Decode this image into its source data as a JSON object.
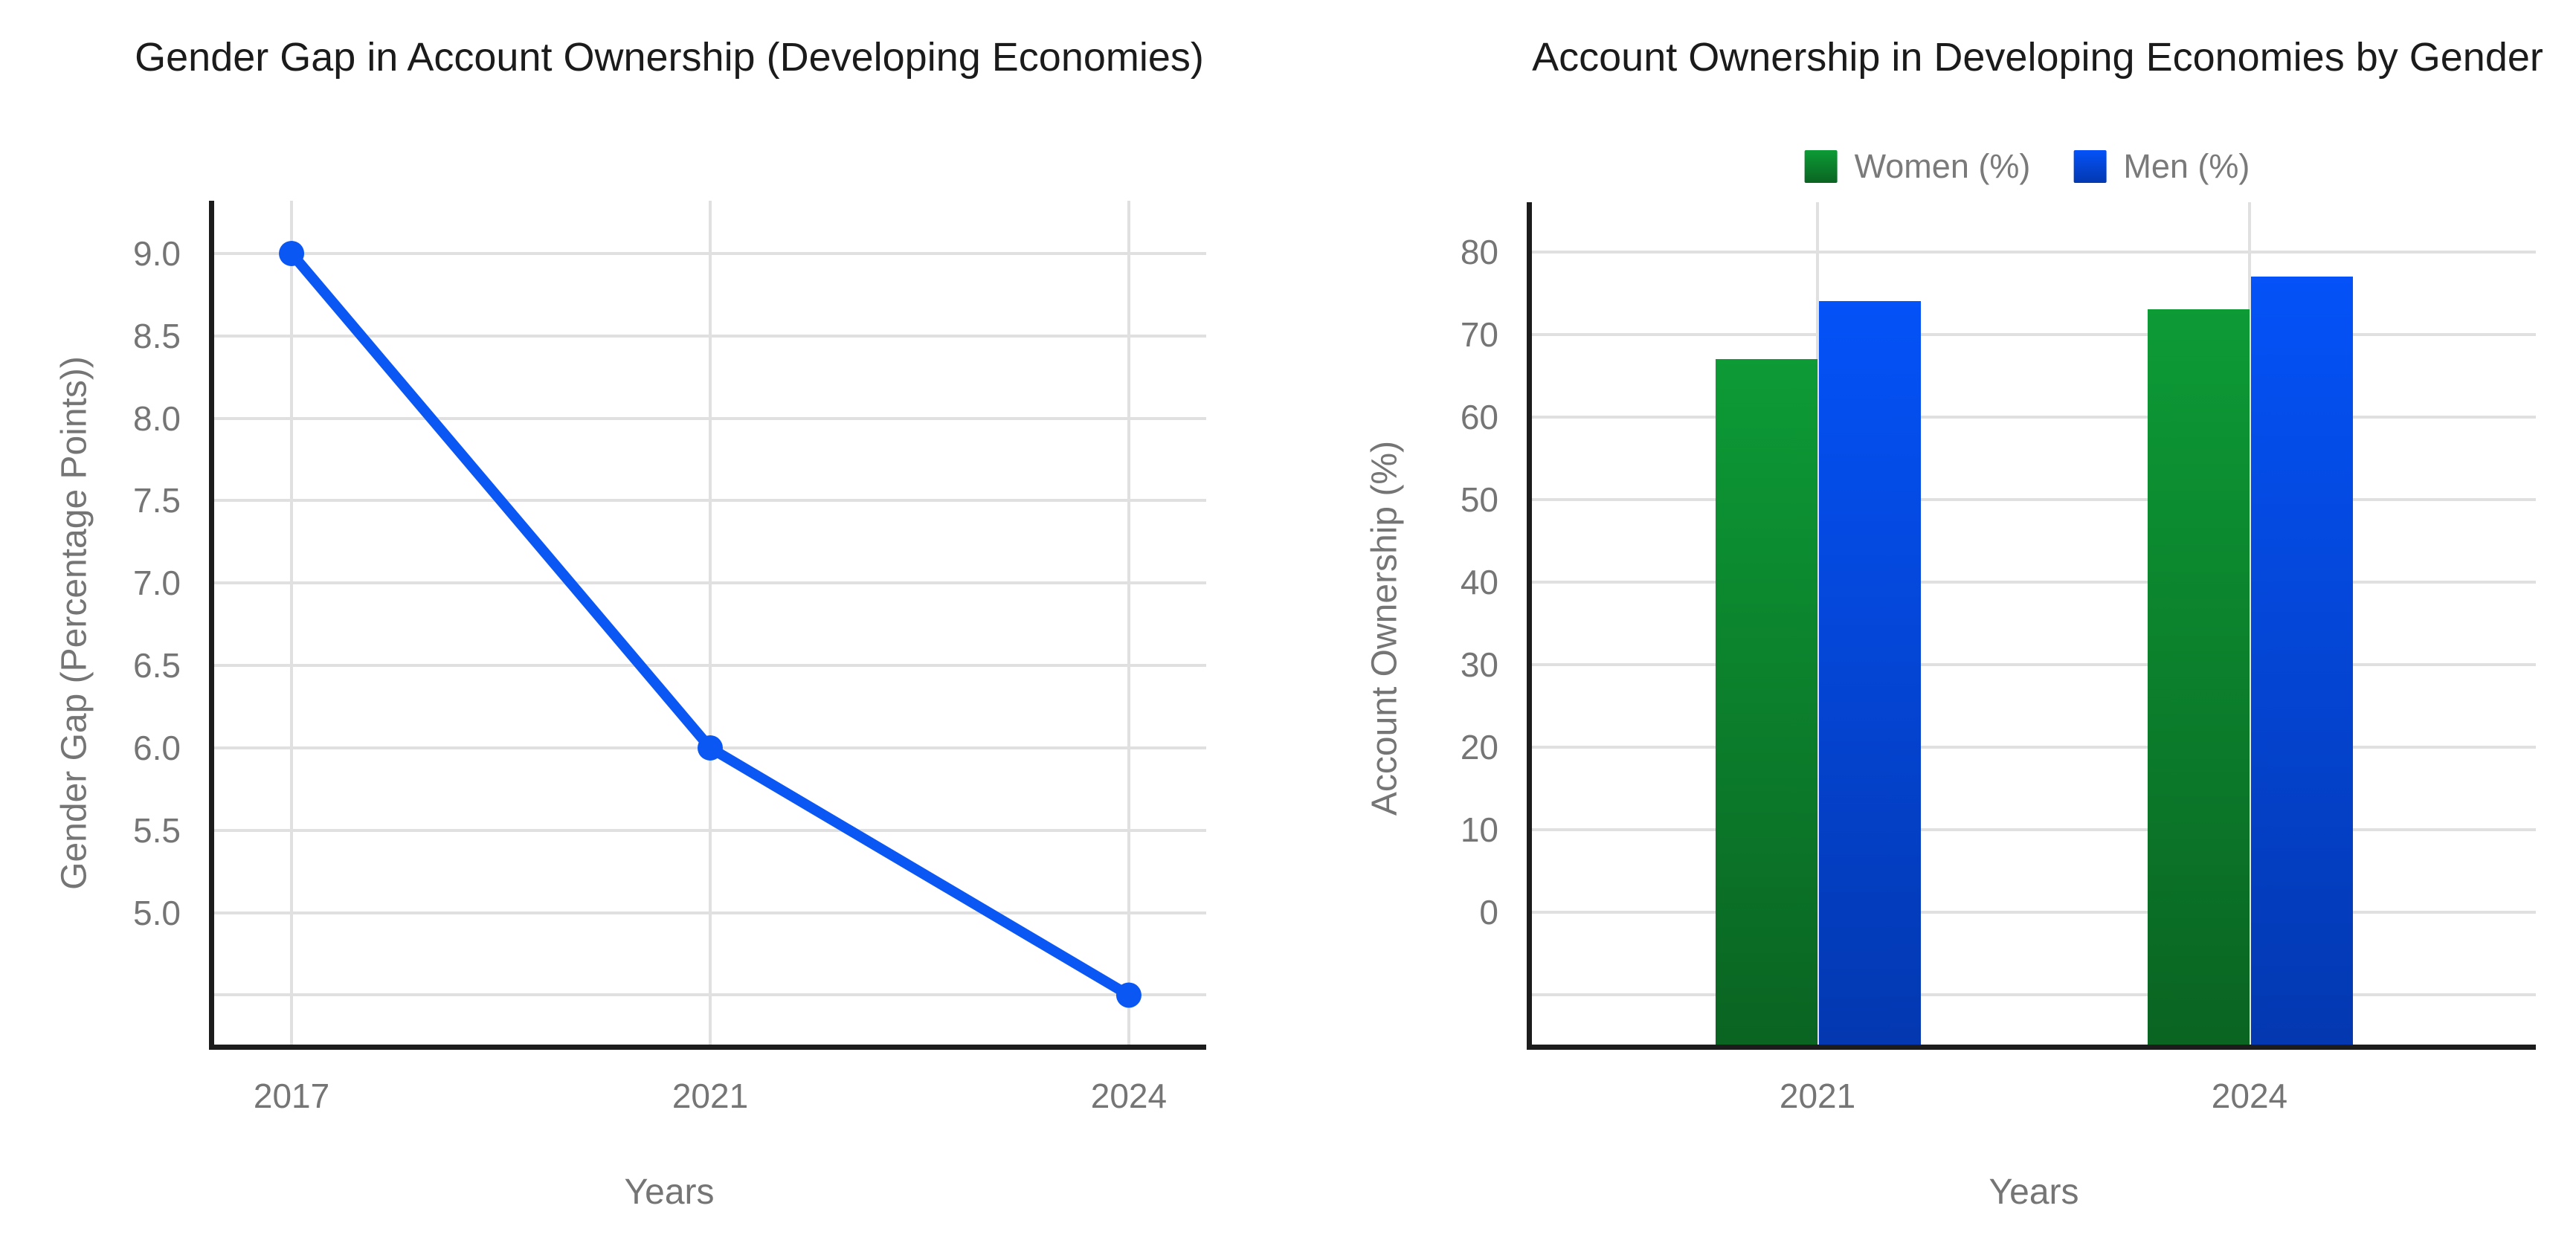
{
  "colors": {
    "background": "#ffffff",
    "title_text": "#1b1b1b",
    "tick_text": "#757575",
    "axis_title_text": "#757575",
    "legend_text": "#7a7a7a",
    "gridline": "#e0e0e0",
    "axis_line": "#1c1c1c",
    "line_blue": "#0b57f3",
    "bar_green_top": "#0d9b36",
    "bar_green_bottom": "#0a6422",
    "bar_blue_top": "#0452f8",
    "bar_blue_bottom": "#0338b0"
  },
  "chart_data": [
    {
      "type": "line",
      "title": "Gender Gap in Account Ownership (Developing Economies)",
      "xlabel": "Years",
      "ylabel": "Gender Gap (Percentage Points))",
      "categories": [
        "2017",
        "2021",
        "2024"
      ],
      "series": [
        {
          "name": "Gender Gap",
          "values": [
            9.0,
            6.0,
            4.5
          ],
          "color": "#0b57f3"
        }
      ],
      "ylim": [
        4.2,
        9.32
      ],
      "y_ticks": [
        {
          "value": 9.0,
          "label": "9.0"
        },
        {
          "value": 8.5,
          "label": "8.5"
        },
        {
          "value": 8.0,
          "label": "8.0"
        },
        {
          "value": 7.5,
          "label": "7.5"
        },
        {
          "value": 7.0,
          "label": "7.0"
        },
        {
          "value": 6.5,
          "label": "6.5"
        },
        {
          "value": 6.0,
          "label": "6.0"
        },
        {
          "value": 5.5,
          "label": "5.5"
        },
        {
          "value": 5.0,
          "label": "5.0"
        },
        {
          "value": 4.5,
          "label": ""
        }
      ],
      "grid": true,
      "legend_position": "none"
    },
    {
      "type": "bar",
      "title": "Account Ownership in Developing Economies by Gender",
      "xlabel": "Years",
      "ylabel": "Account Ownership (%)",
      "categories": [
        "2021",
        "2024"
      ],
      "series": [
        {
          "name": "Women (%)",
          "values": [
            67,
            73
          ],
          "color_top": "#0d9b36",
          "color_bottom": "#0a6422"
        },
        {
          "name": "Men (%)",
          "values": [
            74,
            77
          ],
          "color_top": "#0452f8",
          "color_bottom": "#0338b0"
        }
      ],
      "ylim": [
        -16,
        86
      ],
      "y_ticks": [
        {
          "value": 80,
          "label": "80"
        },
        {
          "value": 70,
          "label": "70"
        },
        {
          "value": 60,
          "label": "60"
        },
        {
          "value": 50,
          "label": "50"
        },
        {
          "value": 40,
          "label": "40"
        },
        {
          "value": 30,
          "label": "30"
        },
        {
          "value": 20,
          "label": "20"
        },
        {
          "value": 10,
          "label": "10"
        },
        {
          "value": 0,
          "label": "0"
        },
        {
          "value": -10,
          "label": ""
        }
      ],
      "grid": true,
      "legend_position": "top"
    }
  ]
}
